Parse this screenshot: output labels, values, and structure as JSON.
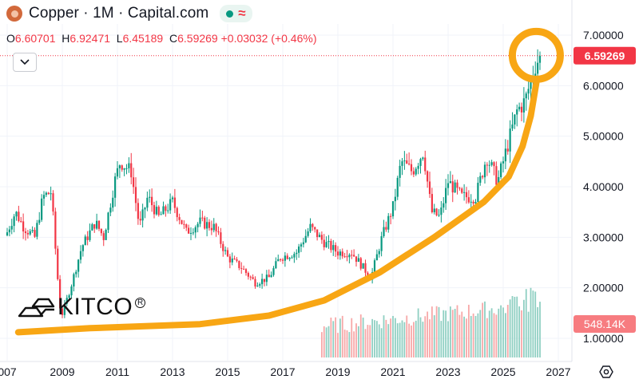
{
  "header": {
    "title": "Copper · 1M · Capital.com",
    "icon": "copper-symbol-icon",
    "market_status_icon": "market-open-dot-icon",
    "wave_icon": "wave-icon"
  },
  "ohlc": {
    "open_label": "O",
    "open": "6.60701",
    "high_label": "H",
    "high": "6.92471",
    "low_label": "L",
    "low": "6.45189",
    "close_label": "C",
    "close": "6.59269",
    "change": "+0.03032 (+0.46%)"
  },
  "colors": {
    "up": "#089981",
    "down": "#f23645",
    "vol_up": "#8fcfc2",
    "vol_down": "#f7a8a8",
    "highlight": "#f8a614"
  },
  "price_tag": "6.59269",
  "volume_tag": "548.14K",
  "logo": {
    "text": "KITCO",
    "reg": "R"
  },
  "chart_data": {
    "type": "candlestick",
    "interval": "1M",
    "ylim": [
      0.72,
      7.26
    ],
    "xlim": [
      2007.0,
      2027.5
    ],
    "y_ticks": [
      "1.00000",
      "2.00000",
      "3.00000",
      "4.00000",
      "5.00000",
      "6.00000",
      "7.00000"
    ],
    "x_ticks": [
      "007",
      "2009",
      "2011",
      "2013",
      "2015",
      "2017",
      "2019",
      "2021",
      "2023",
      "2025",
      "2027"
    ],
    "key_closes": [
      [
        2007.0,
        3.1
      ],
      [
        2007.3,
        3.5
      ],
      [
        2007.6,
        3.2
      ],
      [
        2008.0,
        3.0
      ],
      [
        2008.3,
        3.8
      ],
      [
        2008.6,
        3.9
      ],
      [
        2008.8,
        2.4
      ],
      [
        2008.95,
        1.4
      ],
      [
        2009.3,
        2.0
      ],
      [
        2009.7,
        2.8
      ],
      [
        2010.2,
        3.3
      ],
      [
        2010.5,
        3.0
      ],
      [
        2010.9,
        4.1
      ],
      [
        2011.1,
        4.5
      ],
      [
        2011.5,
        4.3
      ],
      [
        2011.8,
        3.2
      ],
      [
        2012.1,
        3.8
      ],
      [
        2012.5,
        3.4
      ],
      [
        2013.0,
        3.7
      ],
      [
        2013.5,
        3.1
      ],
      [
        2014.0,
        3.3
      ],
      [
        2014.5,
        3.2
      ],
      [
        2015.0,
        2.6
      ],
      [
        2015.5,
        2.4
      ],
      [
        2016.0,
        2.1
      ],
      [
        2016.5,
        2.2
      ],
      [
        2016.9,
        2.6
      ],
      [
        2017.5,
        2.7
      ],
      [
        2018.0,
        3.2
      ],
      [
        2018.5,
        2.9
      ],
      [
        2019.0,
        2.7
      ],
      [
        2019.5,
        2.7
      ],
      [
        2020.2,
        2.2
      ],
      [
        2020.6,
        3.0
      ],
      [
        2021.0,
        3.6
      ],
      [
        2021.3,
        4.5
      ],
      [
        2021.7,
        4.3
      ],
      [
        2022.1,
        4.7
      ],
      [
        2022.4,
        3.5
      ],
      [
        2022.7,
        3.4
      ],
      [
        2023.0,
        4.1
      ],
      [
        2023.5,
        3.8
      ],
      [
        2024.0,
        3.8
      ],
      [
        2024.4,
        4.6
      ],
      [
        2024.8,
        4.1
      ],
      [
        2025.2,
        4.9
      ],
      [
        2025.5,
        5.5
      ],
      [
        2025.8,
        5.7
      ],
      [
        2026.0,
        6.1
      ],
      [
        2026.15,
        6.4
      ],
      [
        2026.35,
        6.59269
      ]
    ],
    "last_close": 6.59269,
    "volume_last": "548.14K",
    "volume_start": 2018.4,
    "annotations": [
      "curved-trend-arrow",
      "highlight-circle-on-last-price"
    ]
  }
}
